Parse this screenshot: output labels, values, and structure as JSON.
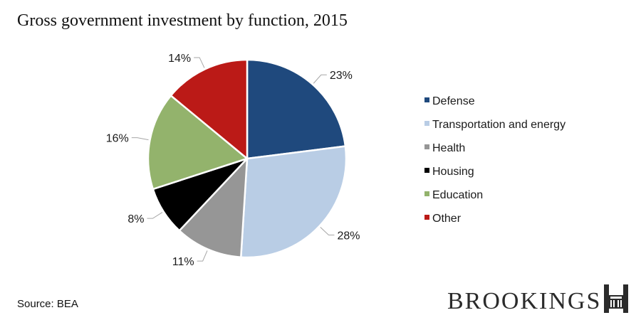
{
  "chart_data": {
    "type": "pie",
    "title": "Gross government investment by function, 2015",
    "categories": [
      "Defense",
      "Transportation and energy",
      "Health",
      "Housing",
      "Education",
      "Other"
    ],
    "values": [
      23,
      28,
      11,
      8,
      16,
      14
    ],
    "labels": [
      "23%",
      "28%",
      "11%",
      "8%",
      "16%",
      "14%"
    ],
    "colors": [
      "#1f497d",
      "#b9cde5",
      "#969696",
      "#000000",
      "#93b36c",
      "#bb1a17"
    ],
    "legend_position": "right",
    "unit": "%"
  },
  "source": "Source: BEA",
  "logo": {
    "text": "BROOKINGS",
    "icon": "brookings-building-icon"
  }
}
